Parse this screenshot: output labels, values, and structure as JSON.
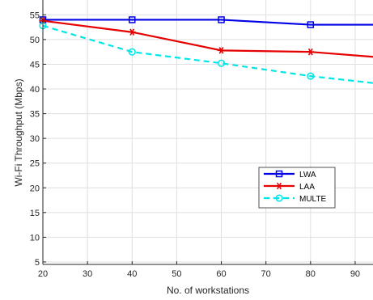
{
  "chart_data": {
    "type": "line",
    "title": "",
    "xlabel": "No. of workstations",
    "ylabel": "Wi-Fi Throughput (Mbps)",
    "xlim": [
      20,
      94
    ],
    "ylim": [
      4.5,
      58
    ],
    "x_ticks": [
      20,
      30,
      40,
      50,
      60,
      70,
      80,
      90
    ],
    "y_ticks": [
      5,
      10,
      15,
      20,
      25,
      30,
      35,
      40,
      45,
      50,
      55
    ],
    "grid": true,
    "legend_position": "center-right",
    "series": [
      {
        "name": "LWA",
        "color": "#0000e6",
        "line_style": "solid",
        "marker": "square",
        "x": [
          20,
          40,
          60,
          80,
          94
        ],
        "y": [
          54.0,
          54.0,
          54.0,
          53.0,
          53.0
        ]
      },
      {
        "name": "LAA",
        "color": "#e60000",
        "line_style": "solid",
        "marker": "asterisk",
        "x": [
          20,
          40,
          60,
          80,
          94
        ],
        "y": [
          53.8,
          51.5,
          47.8,
          47.5,
          46.5
        ]
      },
      {
        "name": "MULTE",
        "color": "#00e6e6",
        "line_style": "dashed",
        "marker": "circle",
        "x": [
          20,
          40,
          60,
          80,
          94
        ],
        "y": [
          52.8,
          47.5,
          45.2,
          42.6,
          41.2
        ]
      }
    ]
  }
}
